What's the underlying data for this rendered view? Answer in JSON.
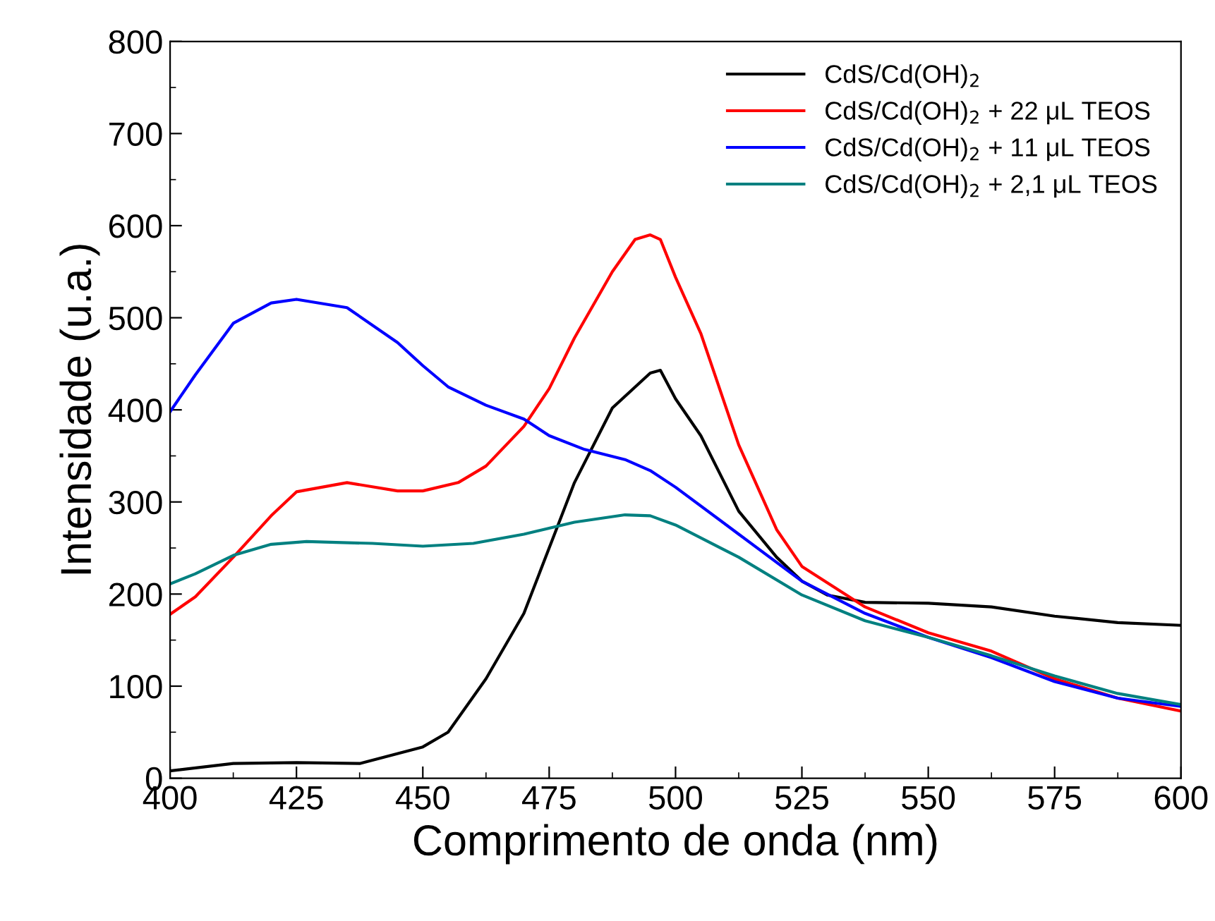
{
  "chart_data": {
    "type": "line",
    "xlabel": "Comprimento de onda (nm)",
    "ylabel": "Intensidade (u.a.)",
    "xlim": [
      400,
      600
    ],
    "xticks": [
      400,
      425,
      450,
      475,
      500,
      525,
      550,
      575,
      600
    ],
    "ylim": [
      0,
      800
    ],
    "yticks": [
      0,
      100,
      200,
      300,
      400,
      500,
      600,
      700,
      800
    ],
    "grid": false,
    "legend": "top right",
    "series": [
      {
        "name": "CdS/Cd(OH)$_{2}$",
        "color": "#000000",
        "x": [
          400,
          412.5,
          425,
          437.5,
          450,
          455,
          462.5,
          470,
          475,
          480,
          487.5,
          495,
          497,
          500,
          505,
          512.5,
          520,
          525,
          530,
          537.5,
          550,
          562.5,
          575,
          587.5,
          600
        ],
        "values": [
          8,
          16,
          17,
          16,
          34,
          50,
          108,
          179,
          250,
          321,
          402,
          440,
          443,
          412,
          372,
          290,
          240,
          214,
          199,
          191,
          190,
          186,
          176,
          169,
          166
        ]
      },
      {
        "name": "CdS/Cd(OH)$_{2}$ + 22 μL TEOS",
        "color": "#ff0000",
        "x": [
          400,
          405,
          412.5,
          420,
          425,
          435,
          445,
          450,
          457,
          462.5,
          470,
          475,
          480,
          487.5,
          492,
          495,
          497,
          500,
          505,
          512.5,
          520,
          525,
          537.5,
          550,
          562.5,
          575,
          587.5,
          600
        ],
        "values": [
          178,
          197,
          240,
          285,
          311,
          321,
          312,
          312,
          321,
          339,
          382,
          423,
          478,
          550,
          585,
          590,
          585,
          544,
          483,
          362,
          270,
          230,
          186,
          158,
          138,
          108,
          87,
          73
        ]
      },
      {
        "name": "CdS/Cd(OH)$_{2}$ + 11 μL TEOS",
        "color": "#0000ff",
        "x": [
          400,
          405,
          412.5,
          420,
          425,
          435,
          445,
          450,
          455,
          462.5,
          470,
          475,
          482,
          490,
          495,
          500,
          512.5,
          525,
          537.5,
          550,
          562.5,
          575,
          587.5,
          600
        ],
        "values": [
          398,
          438,
          494,
          516,
          520,
          511,
          473,
          448,
          425,
          405,
          390,
          372,
          357,
          346,
          334,
          316,
          265,
          214,
          179,
          153,
          131,
          105,
          87,
          78
        ]
      },
      {
        "name": "CdS/Cd(OH)$_{2}$ + 2,1 μL TEOS",
        "color": "#008080",
        "x": [
          400,
          405,
          412.5,
          420,
          427,
          440,
          450,
          460,
          470,
          480,
          490,
          495,
          500,
          512.5,
          525,
          537.5,
          550,
          562.5,
          575,
          587.5,
          600
        ],
        "values": [
          211,
          222,
          242,
          254,
          257,
          255,
          252,
          255,
          265,
          278,
          286,
          285,
          275,
          240,
          199,
          171,
          153,
          133,
          111,
          92,
          80
        ]
      }
    ]
  }
}
